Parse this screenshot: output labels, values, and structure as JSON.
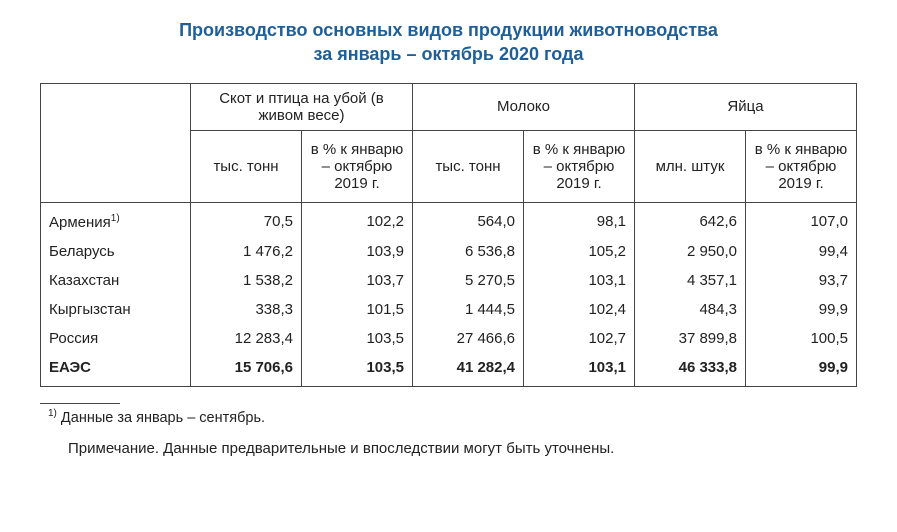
{
  "colors": {
    "title": "#1f5f99",
    "text": "#222222",
    "border": "#444444",
    "background": "#ffffff"
  },
  "typography": {
    "title_fontsize": 18,
    "body_fontsize": 15,
    "footnote_fontsize": 14.5,
    "font_family": "Arial"
  },
  "title_line1": "Производство основных видов продукции животноводства",
  "title_line2": "за январь – октябрь 2020 года",
  "table": {
    "groups": [
      {
        "label": "Скот и птица на убой (в живом весе)"
      },
      {
        "label": "Молоко"
      },
      {
        "label": "Яйца"
      }
    ],
    "subheaders": [
      "тыс. тонн",
      "в % к январю – октябрю 2019 г.",
      "тыс. тонн",
      "в % к январю – октябрю 2019 г.",
      "млн. штук",
      "в % к январю – октябрю 2019 г."
    ],
    "rows": [
      {
        "label": "Армения",
        "sup": "1)",
        "v": [
          "70,5",
          "102,2",
          "564,0",
          "98,1",
          "642,6",
          "107,0"
        ]
      },
      {
        "label": "Беларусь",
        "v": [
          "1 476,2",
          "103,9",
          "6 536,8",
          "105,2",
          "2 950,0",
          "99,4"
        ]
      },
      {
        "label": "Казахстан",
        "v": [
          "1 538,2",
          "103,7",
          "5 270,5",
          "103,1",
          "4 357,1",
          "93,7"
        ]
      },
      {
        "label": "Кыргызстан",
        "v": [
          "338,3",
          "101,5",
          "1 444,5",
          "102,4",
          "484,3",
          "99,9"
        ]
      },
      {
        "label": "Россия",
        "v": [
          "12 283,4",
          "103,5",
          "27 466,6",
          "102,7",
          "37 899,8",
          "100,5"
        ]
      }
    ],
    "total": {
      "label": "ЕАЭС",
      "v": [
        "15 706,6",
        "103,5",
        "41 282,4",
        "103,1",
        "46 333,8",
        "99,9"
      ]
    }
  },
  "footnote_marker": "1)",
  "footnote_text": " Данные за январь – сентябрь.",
  "note_text": "Примечание. Данные предварительные и впоследствии могут быть уточнены."
}
